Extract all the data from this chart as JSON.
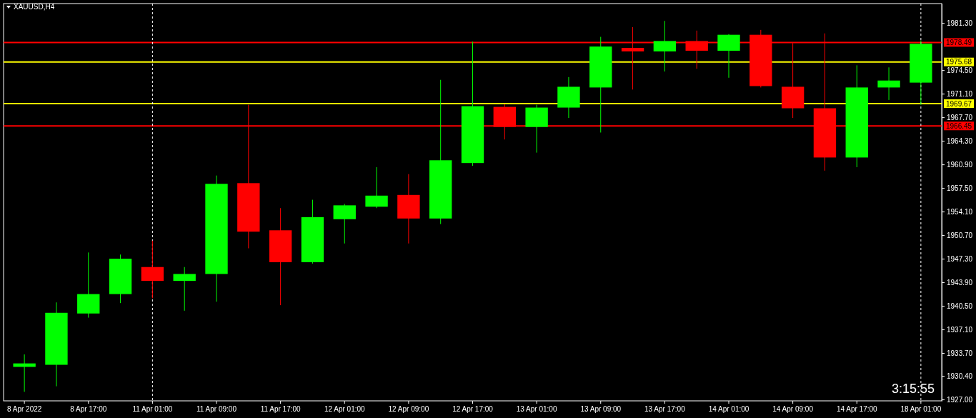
{
  "chart_data": {
    "type": "candlestick",
    "title": "XAUUSD,H4",
    "categories": [
      "8 Apr 2022",
      null,
      "8 Apr 17:00",
      null,
      "11 Apr 01:00",
      null,
      "11 Apr 09:00",
      null,
      "11 Apr 17:00",
      null,
      "12 Apr 01:00",
      null,
      "12 Apr 09:00",
      null,
      "12 Apr 17:00",
      null,
      "13 Apr 01:00",
      null,
      "13 Apr 09:00",
      null,
      "13 Apr 17:00",
      null,
      "14 Apr 01:00",
      null,
      "14 Apr 09:00",
      null,
      "14 Apr 17:00",
      null,
      "18 Apr 01:00"
    ],
    "ohlc": [
      [
        1931.7,
        1933.5,
        1928.1,
        1932.2
      ],
      [
        1932.0,
        1941.0,
        1928.9,
        1939.5
      ],
      [
        1939.4,
        1948.2,
        1938.8,
        1942.2
      ],
      [
        1942.2,
        1947.9,
        1940.9,
        1947.3
      ],
      [
        1946.1,
        1949.9,
        1941.6,
        1944.1
      ],
      [
        1944.1,
        1946.1,
        1939.8,
        1945.1
      ],
      [
        1945.1,
        1959.3,
        1941.1,
        1958.1
      ],
      [
        1958.2,
        1969.5,
        1948.8,
        1951.2
      ],
      [
        1951.4,
        1954.6,
        1940.6,
        1946.8
      ],
      [
        1946.8,
        1955.8,
        1946.6,
        1953.3
      ],
      [
        1953.0,
        1955.2,
        1949.5,
        1955.0
      ],
      [
        1954.8,
        1960.5,
        1954.6,
        1956.4
      ],
      [
        1956.5,
        1959.5,
        1949.5,
        1953.1
      ],
      [
        1953.1,
        1973.1,
        1952.3,
        1961.5
      ],
      [
        1961.1,
        1978.6,
        1960.7,
        1969.3
      ],
      [
        1969.2,
        1969.6,
        1964.5,
        1966.3
      ],
      [
        1966.3,
        1969.5,
        1962.6,
        1969.1
      ],
      [
        1969.1,
        1973.5,
        1967.6,
        1972.1
      ],
      [
        1972.0,
        1979.3,
        1965.5,
        1977.9
      ],
      [
        1977.7,
        1980.7,
        1971.7,
        1977.2
      ],
      [
        1977.2,
        1981.6,
        1974.3,
        1978.7
      ],
      [
        1978.7,
        1980.2,
        1974.7,
        1977.3
      ],
      [
        1977.3,
        1979.7,
        1973.4,
        1979.6
      ],
      [
        1979.6,
        1980.3,
        1972.0,
        1972.2
      ],
      [
        1972.1,
        1978.4,
        1967.6,
        1969.0
      ],
      [
        1969.0,
        1979.8,
        1960.0,
        1961.9
      ],
      [
        1961.9,
        1975.2,
        1960.5,
        1972.0
      ],
      [
        1972.0,
        1974.9,
        1970.2,
        1973.0
      ],
      [
        1972.7,
        1978.8,
        1969.5,
        1978.3
      ]
    ],
    "colors": [
      "#00ff00",
      "#00ff00",
      "#00ff00",
      "#00ff00",
      "#ff0000",
      "#00ff00",
      "#00ff00",
      "#ff0000",
      "#ff0000",
      "#00ff00",
      "#00ff00",
      "#00ff00",
      "#ff0000",
      "#00ff00",
      "#00ff00",
      "#ff0000",
      "#00ff00",
      "#00ff00",
      "#00ff00",
      "#ff0000",
      "#00ff00",
      "#ff0000",
      "#00ff00",
      "#ff0000",
      "#ff0000",
      "#ff0000",
      "#00ff00",
      "#00ff00",
      "#00ff00"
    ],
    "ylim": [
      1926.8,
      1984.1
    ],
    "yticks": [
      {
        "value": 1927,
        "label": "1927.00"
      },
      {
        "value": 1930.4,
        "label": "1930.40"
      },
      {
        "value": 1933.7,
        "label": "1933.70"
      },
      {
        "value": 1937.1,
        "label": "1937.10"
      },
      {
        "value": 1940.5,
        "label": "1940.50"
      },
      {
        "value": 1943.9,
        "label": "1943.90"
      },
      {
        "value": 1947.3,
        "label": "1947.30"
      },
      {
        "value": 1950.7,
        "label": "1950.70"
      },
      {
        "value": 1954.1,
        "label": "1954.10"
      },
      {
        "value": 1957.5,
        "label": "1957.50"
      },
      {
        "value": 1960.9,
        "label": "1960.90"
      },
      {
        "value": 1964.3,
        "label": "1964.30"
      },
      {
        "value": 1967.7,
        "label": "1967.70"
      },
      {
        "value": 1971.1,
        "label": "1971.10"
      },
      {
        "value": 1974.5,
        "label": "1974.50"
      },
      {
        "value": 1981.3,
        "label": "1981.30"
      }
    ],
    "ref_lines": [
      {
        "axis": "y",
        "value": 1978.49,
        "label": "1978.49",
        "color": "#ff0000",
        "line_style": "solid"
      },
      {
        "axis": "y",
        "value": 1975.68,
        "label": "1975.68",
        "color": "#ffff00",
        "line_style": "solid"
      },
      {
        "axis": "y",
        "value": 1969.67,
        "label": "1969.67",
        "color": "#ffff00",
        "line_style": "solid"
      },
      {
        "axis": "y",
        "value": 1966.45,
        "label": "1966.45",
        "color": "#ff0000",
        "line_style": "solid"
      },
      {
        "axis": "x",
        "value": "11 Apr 01:00",
        "color": "#ffffff",
        "line_style": "dashed"
      },
      {
        "axis": "x",
        "value": "18 Apr 01:00",
        "color": "#ffffff",
        "line_style": "dashed"
      }
    ],
    "annotations": [
      "3:15:55"
    ]
  }
}
